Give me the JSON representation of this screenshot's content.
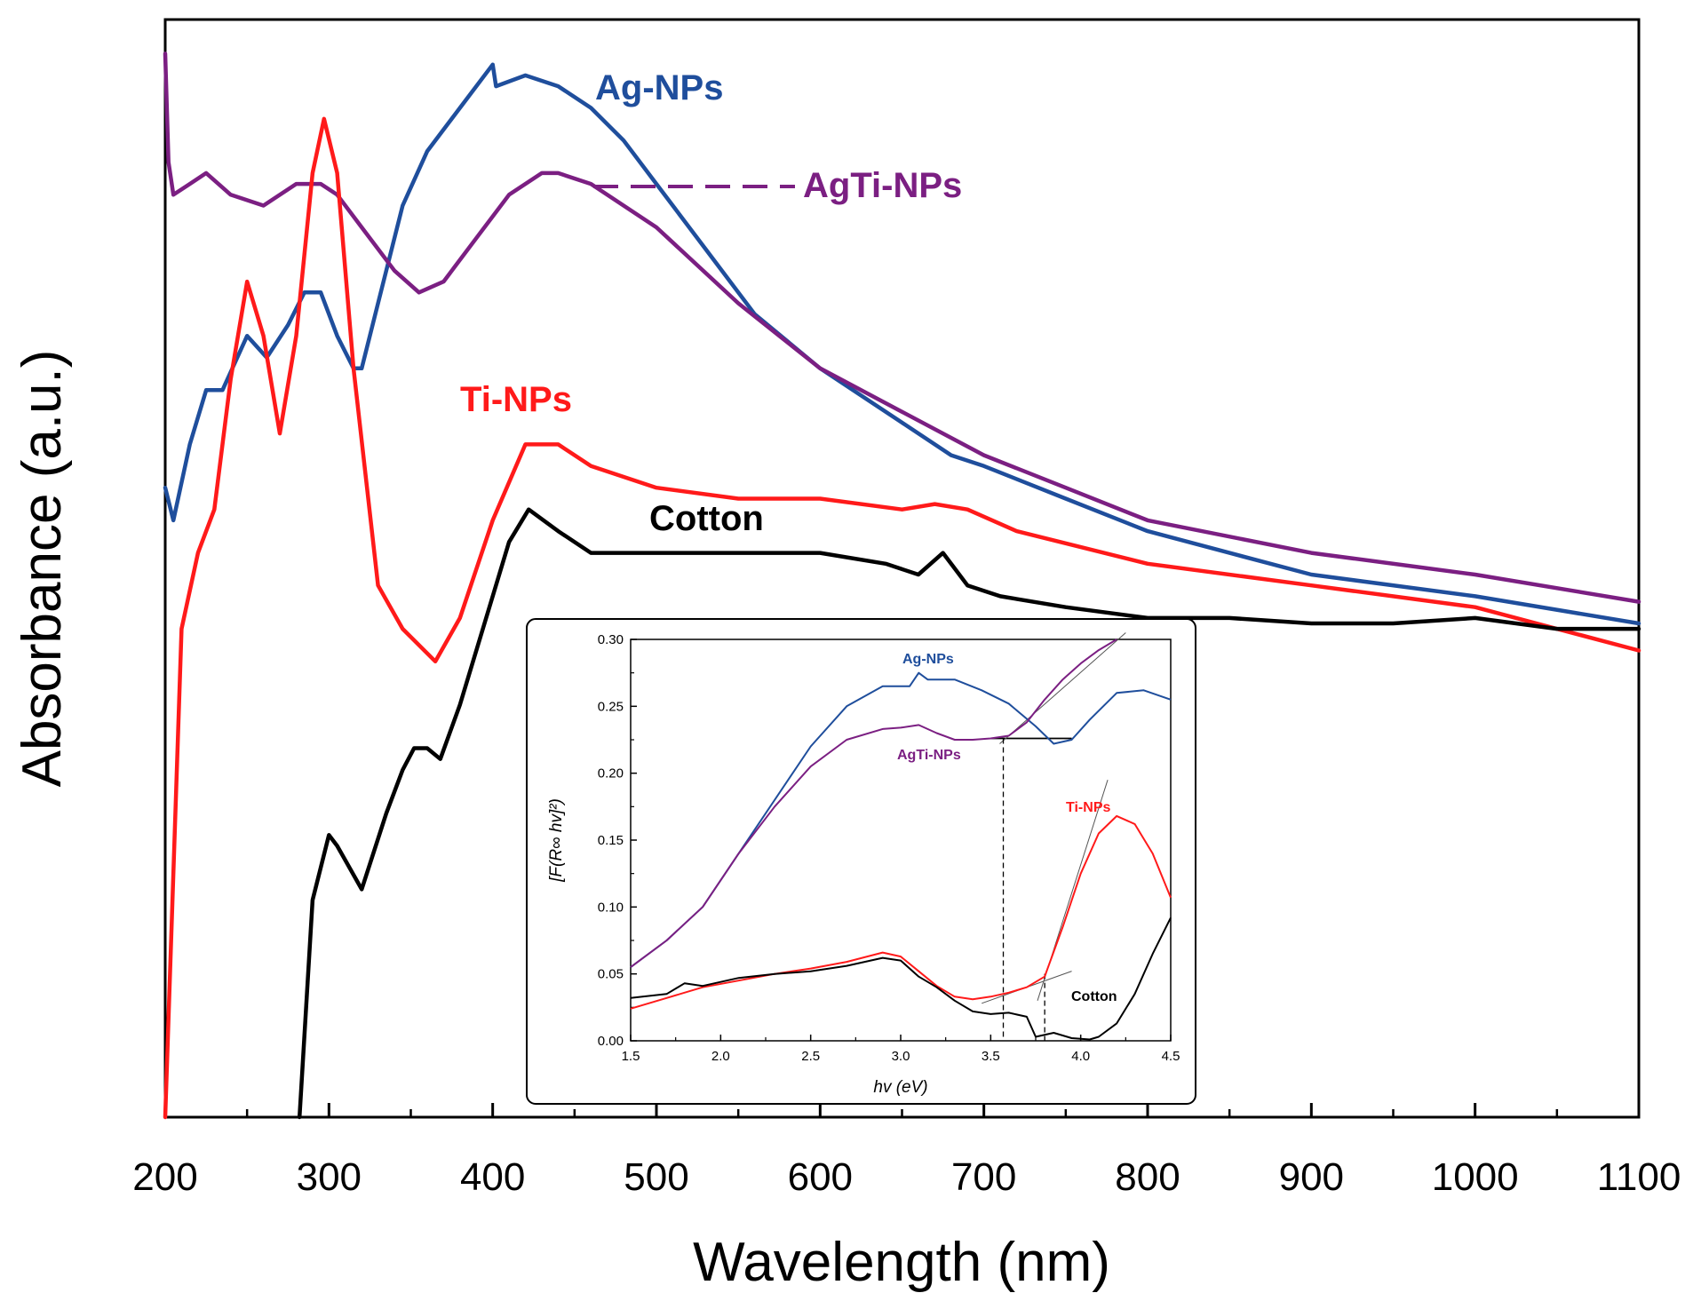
{
  "chart_data": [
    {
      "type": "line",
      "xlabel": "Wavelength (nm)",
      "ylabel": "Absorbance (a.u.)",
      "xlim": [
        200,
        1100
      ],
      "ylim": [
        0,
        1
      ],
      "xticks": [
        200,
        300,
        400,
        500,
        600,
        700,
        800,
        900,
        1000,
        1100
      ],
      "yticks_shown": false,
      "colors": {
        "Ag-NPs": "#1f4e9c",
        "AgTi-NPs": "#7b1f82",
        "Ti-NPs": "#ff1a1a",
        "Cotton": "#000000"
      },
      "series": [
        {
          "name": "Ag-NPs",
          "label": "Ag-NPs",
          "x": [
            200,
            205,
            215,
            225,
            235,
            250,
            262,
            275,
            285,
            295,
            305,
            315,
            320,
            330,
            345,
            360,
            380,
            400,
            402,
            420,
            440,
            460,
            480,
            500,
            530,
            560,
            600,
            650,
            680,
            700,
            750,
            800,
            850,
            900,
            1000,
            1100
          ],
          "y": [
            0.58,
            0.55,
            0.62,
            0.67,
            0.67,
            0.72,
            0.7,
            0.73,
            0.76,
            0.76,
            0.72,
            0.69,
            0.69,
            0.75,
            0.84,
            0.89,
            0.93,
            0.97,
            0.95,
            0.96,
            0.95,
            0.93,
            0.9,
            0.86,
            0.8,
            0.74,
            0.69,
            0.64,
            0.61,
            0.6,
            0.57,
            0.54,
            0.52,
            0.5,
            0.48,
            0.455
          ]
        },
        {
          "name": "AgTi-NPs",
          "label": "AgTi-NPs",
          "x": [
            200,
            202,
            205,
            215,
            225,
            240,
            260,
            280,
            295,
            305,
            320,
            340,
            355,
            370,
            390,
            410,
            430,
            440,
            460,
            500,
            550,
            600,
            650,
            700,
            750,
            800,
            900,
            1000,
            1100
          ],
          "y": [
            0.98,
            0.88,
            0.85,
            0.86,
            0.87,
            0.85,
            0.84,
            0.86,
            0.86,
            0.85,
            0.82,
            0.78,
            0.76,
            0.77,
            0.81,
            0.85,
            0.87,
            0.87,
            0.86,
            0.82,
            0.75,
            0.69,
            0.65,
            0.61,
            0.58,
            0.55,
            0.52,
            0.5,
            0.475
          ]
        },
        {
          "name": "Ti-NPs",
          "label": "Ti-NPs",
          "x": [
            200,
            210,
            220,
            230,
            240,
            250,
            260,
            270,
            280,
            290,
            297,
            305,
            315,
            330,
            345,
            365,
            380,
            400,
            420,
            440,
            460,
            500,
            550,
            600,
            650,
            670,
            690,
            720,
            800,
            900,
            1000,
            1100
          ],
          "y": [
            0.0,
            0.45,
            0.52,
            0.56,
            0.68,
            0.77,
            0.72,
            0.63,
            0.72,
            0.87,
            0.92,
            0.87,
            0.69,
            0.49,
            0.45,
            0.42,
            0.46,
            0.55,
            0.62,
            0.62,
            0.6,
            0.58,
            0.57,
            0.57,
            0.56,
            0.565,
            0.56,
            0.54,
            0.51,
            0.49,
            0.47,
            0.43
          ]
        },
        {
          "name": "Cotton",
          "label": "Cotton",
          "x": [
            282,
            290,
            300,
            305,
            320,
            335,
            345,
            352,
            360,
            368,
            380,
            400,
            410,
            422,
            440,
            460,
            500,
            550,
            600,
            640,
            660,
            675,
            690,
            710,
            750,
            800,
            850,
            900,
            950,
            1000,
            1050,
            1100
          ],
          "y": [
            0.0,
            0.2,
            0.26,
            0.25,
            0.21,
            0.28,
            0.32,
            0.34,
            0.34,
            0.33,
            0.38,
            0.48,
            0.53,
            0.56,
            0.54,
            0.52,
            0.52,
            0.52,
            0.52,
            0.51,
            0.5,
            0.52,
            0.49,
            0.48,
            0.47,
            0.46,
            0.46,
            0.455,
            0.455,
            0.46,
            0.45,
            0.45
          ]
        }
      ],
      "annotations": [
        {
          "text": "Ag-NPs",
          "series": "Ag-NPs"
        },
        {
          "text": "AgTi-NPs",
          "series": "AgTi-NPs"
        },
        {
          "text": "Ti-NPs",
          "series": "Ti-NPs"
        },
        {
          "text": "Cotton",
          "series": "Cotton"
        }
      ]
    },
    {
      "type": "line",
      "xlabel": "hv (eV)",
      "ylabel": "[F(R∞ hv]²)",
      "xlim": [
        1.5,
        4.5
      ],
      "ylim": [
        0.0,
        0.3
      ],
      "xticks": [
        "1.5",
        "2.0",
        "2.5",
        "3.0",
        "3.5",
        "4.0",
        "4.5"
      ],
      "yticks": [
        "0.00",
        "0.05",
        "0.10",
        "0.15",
        "0.20",
        "0.25",
        "0.30"
      ],
      "series": [
        {
          "name": "Ag-NPs",
          "label": "Ag-NPs",
          "x": [
            1.5,
            1.7,
            1.9,
            2.1,
            2.3,
            2.5,
            2.7,
            2.9,
            3.05,
            3.1,
            3.15,
            3.3,
            3.45,
            3.6,
            3.75,
            3.85,
            3.95,
            4.05,
            4.2,
            4.35,
            4.5
          ],
          "y": [
            0.055,
            0.075,
            0.1,
            0.14,
            0.18,
            0.22,
            0.25,
            0.265,
            0.265,
            0.275,
            0.27,
            0.27,
            0.262,
            0.252,
            0.235,
            0.222,
            0.225,
            0.24,
            0.26,
            0.262,
            0.255
          ]
        },
        {
          "name": "AgTi-NPs",
          "label": "AgTi-NPs",
          "x": [
            1.5,
            1.7,
            1.9,
            2.1,
            2.3,
            2.5,
            2.7,
            2.9,
            3.0,
            3.1,
            3.2,
            3.3,
            3.4,
            3.5,
            3.6,
            3.7,
            3.8,
            3.9,
            4.0,
            4.1,
            4.2
          ],
          "y": [
            0.055,
            0.075,
            0.1,
            0.14,
            0.175,
            0.205,
            0.225,
            0.233,
            0.234,
            0.236,
            0.23,
            0.225,
            0.225,
            0.226,
            0.228,
            0.238,
            0.255,
            0.27,
            0.282,
            0.292,
            0.3
          ]
        },
        {
          "name": "Ti-NPs",
          "label": "Ti-NPs",
          "x": [
            1.5,
            1.7,
            1.9,
            2.1,
            2.3,
            2.5,
            2.7,
            2.9,
            3.0,
            3.1,
            3.2,
            3.3,
            3.4,
            3.5,
            3.6,
            3.7,
            3.8,
            3.9,
            4.0,
            4.1,
            4.2,
            4.3,
            4.4,
            4.5
          ],
          "y": [
            0.024,
            0.032,
            0.04,
            0.045,
            0.05,
            0.054,
            0.059,
            0.066,
            0.063,
            0.052,
            0.041,
            0.033,
            0.031,
            0.033,
            0.036,
            0.04,
            0.048,
            0.085,
            0.125,
            0.155,
            0.168,
            0.162,
            0.14,
            0.107
          ]
        },
        {
          "name": "Cotton",
          "label": "Cotton",
          "x": [
            1.5,
            1.7,
            1.8,
            1.9,
            2.1,
            2.3,
            2.5,
            2.7,
            2.9,
            3.0,
            3.1,
            3.2,
            3.3,
            3.4,
            3.5,
            3.6,
            3.7,
            3.75,
            3.85,
            3.95,
            4.05,
            4.1,
            4.2,
            4.3,
            4.4,
            4.5
          ],
          "y": [
            0.032,
            0.035,
            0.043,
            0.041,
            0.047,
            0.05,
            0.052,
            0.056,
            0.062,
            0.06,
            0.048,
            0.04,
            0.03,
            0.022,
            0.02,
            0.021,
            0.018,
            0.003,
            0.006,
            0.002,
            0.001,
            0.003,
            0.013,
            0.035,
            0.065,
            0.092
          ]
        }
      ],
      "fit_lines": [
        {
          "name": "AgTi-NPs baseline",
          "x": [
            3.5,
            3.95
          ],
          "y": [
            0.226,
            0.226
          ]
        },
        {
          "name": "AgTi-NPs tangent",
          "x": [
            3.55,
            4.25
          ],
          "y": [
            0.222,
            0.305
          ]
        },
        {
          "name": "Ti-NPs baseline",
          "x": [
            3.45,
            3.95
          ],
          "y": [
            0.028,
            0.052
          ]
        },
        {
          "name": "Ti-NPs tangent",
          "x": [
            3.76,
            4.15
          ],
          "y": [
            0.03,
            0.195
          ]
        }
      ],
      "vertical_markers_eV": [
        3.57,
        3.8
      ],
      "annotations": [
        {
          "text": "Ag-NPs",
          "series": "Ag-NPs"
        },
        {
          "text": "AgTi-NPs",
          "series": "AgTi-NPs"
        },
        {
          "text": "Ti-NPs",
          "series": "Ti-NPs"
        },
        {
          "text": "Cotton",
          "series": "Cotton"
        }
      ]
    }
  ]
}
